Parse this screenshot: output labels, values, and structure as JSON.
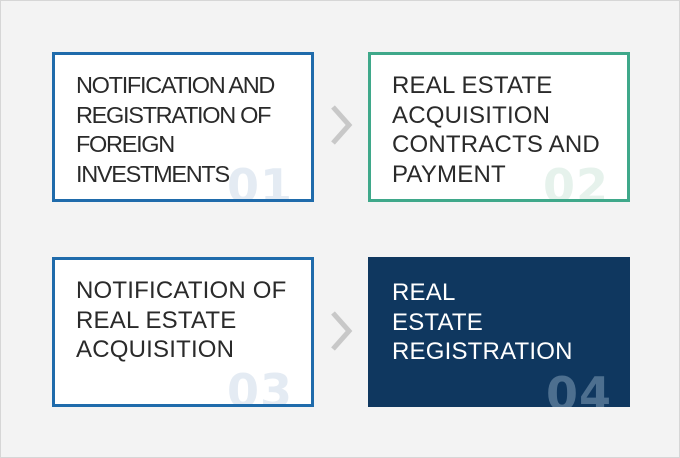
{
  "steps": [
    {
      "label": "NOTIFICATION AND\nREGISTRATION OF\nFOREIGN\nINVESTMENTS",
      "number": "01"
    },
    {
      "label": "REAL ESTATE\nACQUISITION\nCONTRACTS AND\nPAYMENT",
      "number": "02"
    },
    {
      "label": "NOTIFICATION OF\nREAL ESTATE\nACQUISITION",
      "number": "03"
    },
    {
      "label": "REAL\nESTATE\nREGISTRATION",
      "number": "04"
    }
  ],
  "colors": {
    "background": "#f3f3f3",
    "step_border_blue": "#1f6bab",
    "step_border_green": "#3fa88a",
    "highlight_fill": "#0f375f",
    "chevron": "#c8c8c8"
  },
  "icons": {
    "connector": "chevron-right-icon"
  }
}
